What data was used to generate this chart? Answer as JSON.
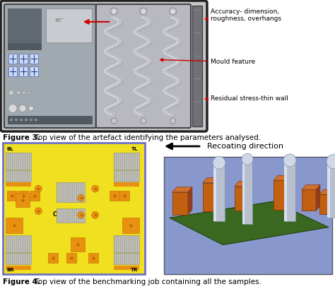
{
  "fig_width": 4.74,
  "fig_height": 4.09,
  "dpi": 100,
  "bg_color": "#ffffff",
  "fig3_caption_bold": "Figure 3.",
  "fig3_caption_text": " Top view of the artefact identifying the parameters analysed.",
  "fig3_caption_fontsize": 7.5,
  "fig4_caption_bold": "Figure 4.",
  "fig4_caption_text": " Top view of the benchmarking job containing all the samples.",
  "fig4_caption_fontsize": 7.5,
  "ann_color": "#cc0000",
  "ann_fontsize": 6.5,
  "recoating_fontsize": 8,
  "recoating_text": "Recoating direction",
  "top_panel_left_bg": "#a0a8b0",
  "top_panel_right_bg": "#b8b8c0",
  "top_outer_bg": "#c8c8c8",
  "top_border_color": "#222222",
  "top_strip_color": "#606068",
  "bl_yellow": "#f0e020",
  "bl_border": "#7070c8",
  "orange_color": "#e89010",
  "orange_dot": "#c06800",
  "br_sky": "#8898cc",
  "br_green": "#3a6820",
  "br_orange": "#c06010",
  "br_cyl": "#b8c0d0"
}
